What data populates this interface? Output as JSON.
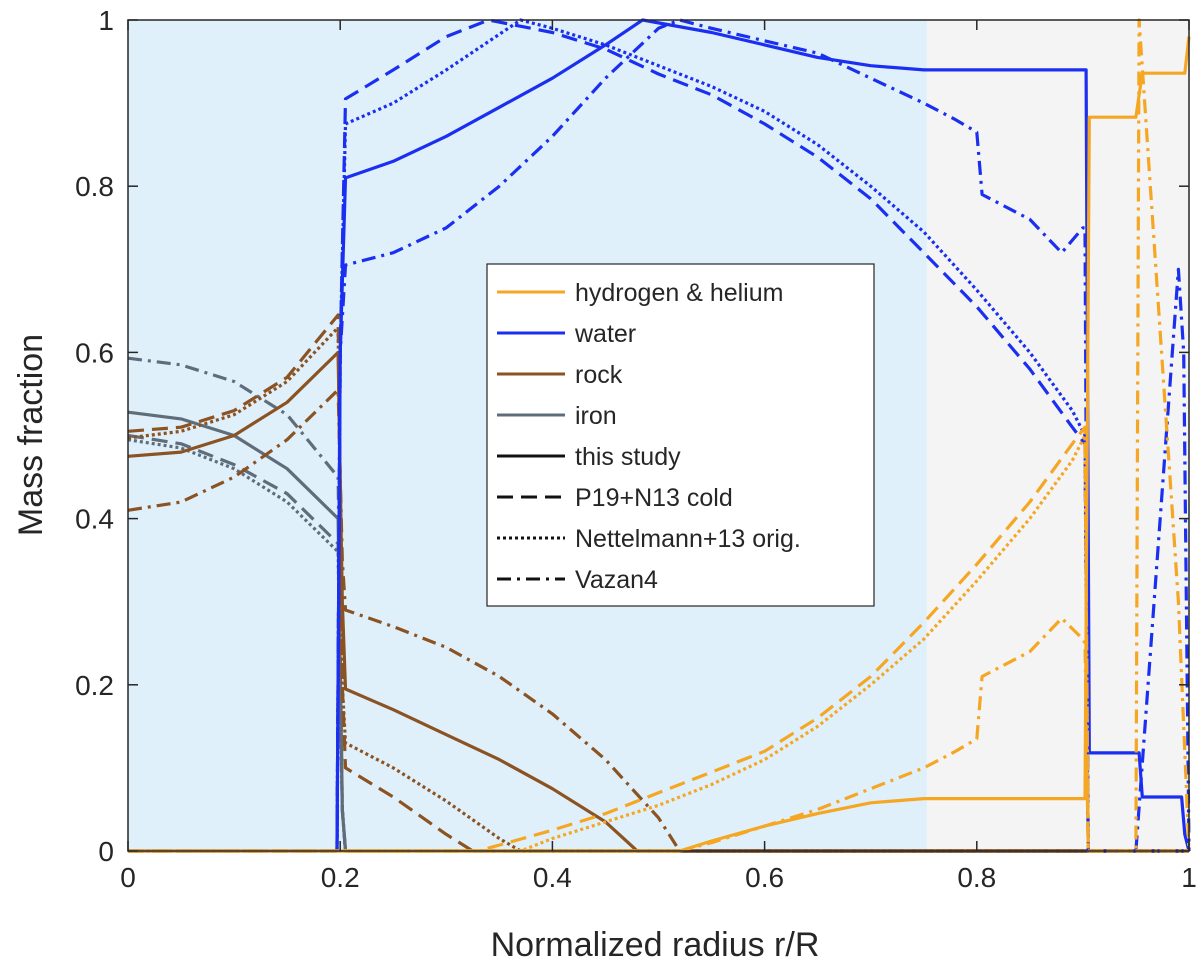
{
  "chart_data": {
    "type": "line",
    "title": "",
    "xlabel": "Normalized radius r/R",
    "ylabel": "Mass fraction",
    "xlim": [
      0,
      1
    ],
    "ylim": [
      0,
      1
    ],
    "xticks": [
      "0",
      "0.2",
      "0.4",
      "0.6",
      "0.8",
      "1"
    ],
    "xtick_values": [
      0,
      0.2,
      0.4,
      0.6,
      0.8,
      1
    ],
    "yticks": [
      "0",
      "0.2",
      "0.4",
      "0.6",
      "0.8",
      "1"
    ],
    "ytick_values": [
      0,
      0.2,
      0.4,
      0.6,
      0.8,
      1
    ],
    "grid": false,
    "legend_position": "center",
    "shaded_regions": [
      {
        "x0": 0,
        "x1": 0.753,
        "color": "#dff0fb",
        "meaning": "inner region"
      },
      {
        "x0": 0.753,
        "x1": 1,
        "color": "#f4f4f4",
        "meaning": "outer region"
      }
    ],
    "colors": {
      "hydrogen_helium": "#f5a623",
      "water": "#1a2ff0",
      "rock": "#8b5222",
      "iron": "#5f6d7a"
    },
    "legend": {
      "components": [
        {
          "label": "hydrogen & helium",
          "key": "hydrogen_helium"
        },
        {
          "label": "water",
          "key": "water"
        },
        {
          "label": "rock",
          "key": "rock"
        },
        {
          "label": "iron",
          "key": "iron"
        }
      ],
      "models": [
        {
          "label": "this study",
          "style": "solid"
        },
        {
          "label": "P19+N13 cold",
          "style": "dashed"
        },
        {
          "label": "Nettelmann+13 orig.",
          "style": "dotted"
        },
        {
          "label": "Vazan4",
          "style": "dashdot"
        }
      ]
    },
    "series": [
      {
        "name": "this study – iron",
        "component": "iron",
        "style": "solid",
        "x": [
          0,
          0.05,
          0.1,
          0.15,
          0.198,
          0.202,
          0.205,
          1
        ],
        "y": [
          0.528,
          0.52,
          0.5,
          0.46,
          0.4,
          0.05,
          0,
          0
        ]
      },
      {
        "name": "P19+N13 cold – iron",
        "component": "iron",
        "style": "dashed",
        "x": [
          0,
          0.05,
          0.1,
          0.15,
          0.198,
          0.202,
          0.205,
          1
        ],
        "y": [
          0.5,
          0.49,
          0.465,
          0.43,
          0.37,
          0.05,
          0,
          0
        ]
      },
      {
        "name": "Nettelmann+13 orig. – iron",
        "component": "iron",
        "style": "dotted",
        "x": [
          0,
          0.05,
          0.1,
          0.15,
          0.198,
          0.202,
          0.205,
          1
        ],
        "y": [
          0.495,
          0.485,
          0.46,
          0.42,
          0.36,
          0.05,
          0,
          0
        ]
      },
      {
        "name": "Vazan4 – iron",
        "component": "iron",
        "style": "dashdot",
        "x": [
          0,
          0.05,
          0.1,
          0.15,
          0.198,
          0.202,
          0.205,
          1
        ],
        "y": [
          0.593,
          0.585,
          0.565,
          0.525,
          0.45,
          0.05,
          0,
          0
        ]
      },
      {
        "name": "this study – rock",
        "component": "rock",
        "style": "solid",
        "x": [
          0,
          0.05,
          0.1,
          0.15,
          0.198,
          0.202,
          0.205,
          0.25,
          0.3,
          0.35,
          0.4,
          0.45,
          0.48,
          1
        ],
        "y": [
          0.475,
          0.48,
          0.5,
          0.54,
          0.6,
          0.3,
          0.195,
          0.17,
          0.14,
          0.11,
          0.075,
          0.035,
          0,
          0
        ]
      },
      {
        "name": "P19+N13 cold – rock",
        "component": "rock",
        "style": "dashed",
        "x": [
          0,
          0.05,
          0.1,
          0.15,
          0.198,
          0.202,
          0.205,
          0.25,
          0.3,
          0.325,
          1
        ],
        "y": [
          0.505,
          0.51,
          0.53,
          0.57,
          0.645,
          0.2,
          0.1,
          0.065,
          0.02,
          0,
          0
        ]
      },
      {
        "name": "Nettelmann+13 orig. – rock",
        "component": "rock",
        "style": "dotted",
        "x": [
          0,
          0.05,
          0.1,
          0.15,
          0.198,
          0.202,
          0.205,
          0.25,
          0.3,
          0.35,
          0.37,
          1
        ],
        "y": [
          0.497,
          0.505,
          0.525,
          0.565,
          0.63,
          0.2,
          0.13,
          0.1,
          0.06,
          0.015,
          0,
          0
        ]
      },
      {
        "name": "Vazan4 – rock",
        "component": "rock",
        "style": "dashdot",
        "x": [
          0,
          0.05,
          0.1,
          0.15,
          0.198,
          0.202,
          0.205,
          0.25,
          0.3,
          0.35,
          0.4,
          0.45,
          0.5,
          0.52,
          1
        ],
        "y": [
          0.41,
          0.42,
          0.45,
          0.495,
          0.555,
          0.35,
          0.29,
          0.27,
          0.245,
          0.21,
          0.165,
          0.11,
          0.04,
          0,
          0
        ]
      },
      {
        "name": "this study – water",
        "component": "water",
        "style": "solid",
        "x": [
          0,
          0.197,
          0.2,
          0.205,
          0.25,
          0.3,
          0.35,
          0.4,
          0.45,
          0.485,
          0.55,
          0.6,
          0.65,
          0.7,
          0.75,
          0.8,
          0.85,
          0.9,
          0.903,
          0.906,
          0.95,
          0.953,
          0.956,
          0.99,
          0.993,
          0.996,
          1
        ],
        "y": [
          0,
          0,
          0.6,
          0.81,
          0.83,
          0.86,
          0.895,
          0.93,
          0.97,
          1.0,
          0.985,
          0.97,
          0.955,
          0.945,
          0.94,
          0.94,
          0.94,
          0.94,
          0.94,
          0.118,
          0.118,
          0.118,
          0.065,
          0.065,
          0.065,
          0.02,
          0
        ]
      },
      {
        "name": "P19+N13 cold – water",
        "component": "water",
        "style": "dashed",
        "x": [
          0,
          0.197,
          0.2,
          0.205,
          0.25,
          0.3,
          0.34,
          0.4,
          0.45,
          0.5,
          0.55,
          0.6,
          0.65,
          0.7,
          0.75,
          0.8,
          0.85,
          0.89,
          0.902,
          0.905,
          1
        ],
        "y": [
          0,
          0,
          0.6,
          0.905,
          0.94,
          0.98,
          1.0,
          0.985,
          0.965,
          0.935,
          0.91,
          0.875,
          0.835,
          0.785,
          0.72,
          0.655,
          0.58,
          0.51,
          0.49,
          0,
          0
        ]
      },
      {
        "name": "Nettelmann+13 orig. – water",
        "component": "water",
        "style": "dotted",
        "x": [
          0,
          0.197,
          0.2,
          0.205,
          0.25,
          0.3,
          0.37,
          0.4,
          0.45,
          0.5,
          0.55,
          0.6,
          0.65,
          0.7,
          0.75,
          0.8,
          0.85,
          0.89,
          0.902,
          0.905,
          1
        ],
        "y": [
          0,
          0,
          0.6,
          0.875,
          0.9,
          0.94,
          1.0,
          0.99,
          0.97,
          0.945,
          0.92,
          0.89,
          0.85,
          0.8,
          0.745,
          0.675,
          0.6,
          0.53,
          0.5,
          0,
          0
        ]
      },
      {
        "name": "Vazan4 – water",
        "component": "water",
        "style": "dashdot",
        "x": [
          0,
          0.197,
          0.2,
          0.205,
          0.25,
          0.3,
          0.35,
          0.4,
          0.45,
          0.5,
          0.52,
          0.55,
          0.6,
          0.65,
          0.7,
          0.75,
          0.78,
          0.8,
          0.805,
          0.85,
          0.88,
          0.9,
          0.902,
          0.905,
          0.95,
          0.99,
          0.995,
          1
        ],
        "y": [
          0,
          0,
          0.6,
          0.705,
          0.72,
          0.75,
          0.8,
          0.86,
          0.93,
          0.99,
          1.0,
          0.99,
          0.975,
          0.96,
          0.93,
          0.9,
          0.88,
          0.865,
          0.79,
          0.76,
          0.72,
          0.75,
          0.75,
          0,
          0,
          0.7,
          0.6,
          0
        ]
      },
      {
        "name": "this study – hydrogen & helium",
        "component": "hydrogen_helium",
        "style": "solid",
        "x": [
          0,
          0.52,
          0.55,
          0.6,
          0.65,
          0.7,
          0.75,
          0.8,
          0.85,
          0.902,
          0.906,
          0.94,
          0.95,
          0.956,
          0.99,
          0.996,
          1
        ],
        "y": [
          0,
          0,
          0.012,
          0.03,
          0.045,
          0.058,
          0.063,
          0.063,
          0.063,
          0.063,
          0.883,
          0.883,
          0.883,
          0.936,
          0.936,
          0.936,
          0.98
        ]
      },
      {
        "name": "P19+N13 cold – hydrogen & helium",
        "component": "hydrogen_helium",
        "style": "dashed",
        "x": [
          0,
          0.33,
          0.4,
          0.45,
          0.5,
          0.55,
          0.6,
          0.65,
          0.7,
          0.75,
          0.8,
          0.85,
          0.89,
          0.902,
          0.905,
          1
        ],
        "y": [
          0,
          0,
          0.025,
          0.045,
          0.07,
          0.095,
          0.12,
          0.16,
          0.21,
          0.275,
          0.345,
          0.42,
          0.49,
          0.51,
          0,
          0
        ]
      },
      {
        "name": "Nettelmann+13 orig. – hydrogen & helium",
        "component": "hydrogen_helium",
        "style": "dotted",
        "x": [
          0,
          0.37,
          0.4,
          0.45,
          0.5,
          0.55,
          0.6,
          0.65,
          0.7,
          0.75,
          0.8,
          0.85,
          0.89,
          0.902,
          0.905,
          1
        ],
        "y": [
          0,
          0,
          0.015,
          0.035,
          0.055,
          0.08,
          0.11,
          0.15,
          0.2,
          0.255,
          0.325,
          0.4,
          0.47,
          0.5,
          0,
          0
        ]
      },
      {
        "name": "Vazan4 – hydrogen & helium",
        "component": "hydrogen_helium",
        "style": "dashdot",
        "x": [
          0,
          0.52,
          0.55,
          0.6,
          0.65,
          0.7,
          0.75,
          0.78,
          0.8,
          0.805,
          0.85,
          0.88,
          0.9,
          0.902,
          0.905,
          0.95,
          0.953,
          0.99,
          1
        ],
        "y": [
          0,
          0,
          0.01,
          0.03,
          0.05,
          0.075,
          0.1,
          0.12,
          0.135,
          0.21,
          0.24,
          0.28,
          0.255,
          0.25,
          0,
          0,
          1.0,
          0.3,
          0
        ]
      }
    ]
  }
}
